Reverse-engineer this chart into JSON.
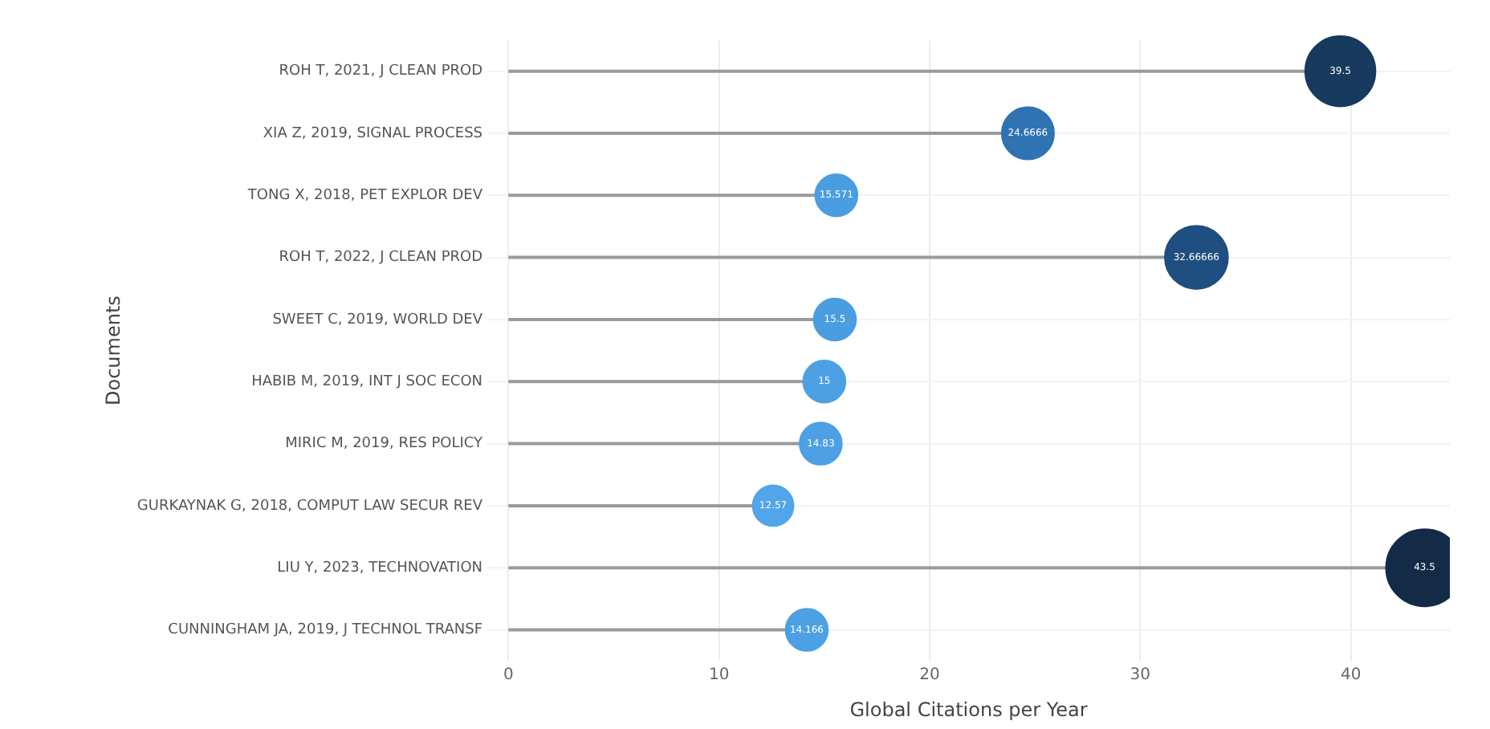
{
  "chart_data": {
    "type": "lollipop",
    "xlabel": "Global Citations per Year",
    "ylabel": "Documents",
    "orientation": "horizontal",
    "categories": [
      "ROH T, 2021, J CLEAN PROD",
      "XIA Z, 2019, SIGNAL PROCESS",
      "TONG X, 2018, PET EXPLOR DEV",
      "ROH T, 2022, J CLEAN PROD",
      "SWEET C, 2019, WORLD DEV",
      "HABIB M, 2019, INT J SOC ECON",
      "MIRIC M, 2019, RES POLICY",
      "GURKAYNAK G, 2018, COMPUT LAW SECUR REV",
      "LIU Y, 2023, TECHNOVATION",
      "CUNNINGHAM JA, 2019, J TECHNOL TRANSF"
    ],
    "values": [
      39.5,
      24.6666,
      15.571,
      32.66666,
      15.5,
      15,
      14.83,
      12.57,
      43.5,
      14.166
    ],
    "sizes": [
      0.83,
      0.46,
      0.3,
      0.67,
      0.3,
      0.3,
      0.3,
      0.28,
      1,
      0.3
    ],
    "value_labels": [
      "39.5",
      "24.6666",
      "15.571",
      "32.66666",
      "15.5",
      "15",
      "14.83",
      "12.57",
      "43.5",
      "14.166"
    ],
    "colors": [
      "#173a5e",
      "#2f73b2",
      "#4a9de0",
      "#1f4f80",
      "#4a9de0",
      "#4ca0e3",
      "#4ca0e3",
      "#52a5e8",
      "#132b47",
      "#4ca0e3"
    ],
    "xlim": [
      -1,
      44.7
    ],
    "xticks": [
      0,
      10,
      20,
      30,
      40
    ],
    "grid": true
  }
}
